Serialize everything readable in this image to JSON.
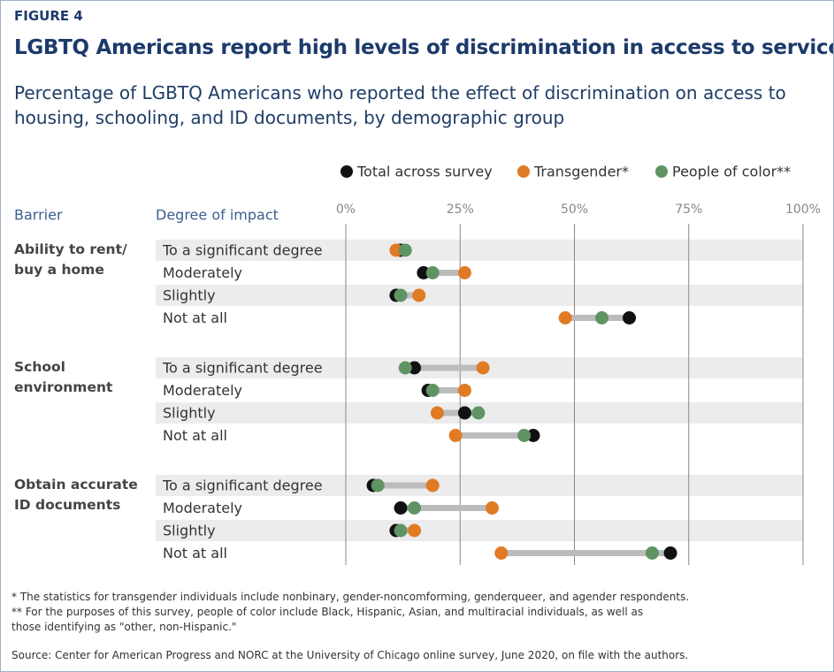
{
  "chart_data": {
    "type": "dot",
    "figure_label": "FIGURE 4",
    "title": "LGBTQ Americans report high levels of discrimination in access to services",
    "subtitle": "Percentage of LGBTQ Americans who reported the effect of discrimination on access to housing, schooling, and ID documents, by demographic group",
    "column_headers": [
      "Barrier",
      "Degree of impact"
    ],
    "groups": [
      "Ability to rent/ buy a home",
      "School environment",
      "Obtain accurate ID documents"
    ],
    "categories": [
      "To a significant degree",
      "Moderately",
      "Slightly",
      "Not at all",
      "To a significant degree",
      "Moderately",
      "Slightly",
      "Not at all",
      "To a significant degree",
      "Moderately",
      "Slightly",
      "Not at all"
    ],
    "series": [
      {
        "name": "Total across survey",
        "color": "#111111",
        "values": [
          12,
          17,
          11,
          62,
          15,
          18,
          26,
          41,
          6,
          12,
          11,
          71
        ]
      },
      {
        "name": "Transgender*",
        "color": "#e07b24",
        "values": [
          11,
          26,
          16,
          48,
          30,
          26,
          20,
          24,
          19,
          32,
          15,
          34
        ]
      },
      {
        "name": "People of color**",
        "color": "#5f9363",
        "values": [
          13,
          19,
          12,
          56,
          13,
          19,
          29,
          39,
          7,
          15,
          12,
          67
        ]
      }
    ],
    "xlim": [
      0,
      100
    ],
    "xticks": [
      {
        "value": 0,
        "label": "0%"
      },
      {
        "value": 25,
        "label": "25%"
      },
      {
        "value": 50,
        "label": "50%"
      },
      {
        "value": 75,
        "label": "75%"
      },
      {
        "value": 100,
        "label": "100%"
      }
    ],
    "grid": true,
    "footnotes": [
      "* The statistics for transgender individuals include nonbinary, gender-noncomforming, genderqueer, and agender respondents.",
      "** For the purposes of this survey, people of color include Black, Hispanic, Asian, and multiracial individuals, as well as those identifying as \"other, non-Hispanic.\"",
      "Source: Center for American Progress and NORC at the University of Chicago online survey, June 2020, on file with the authors."
    ]
  }
}
